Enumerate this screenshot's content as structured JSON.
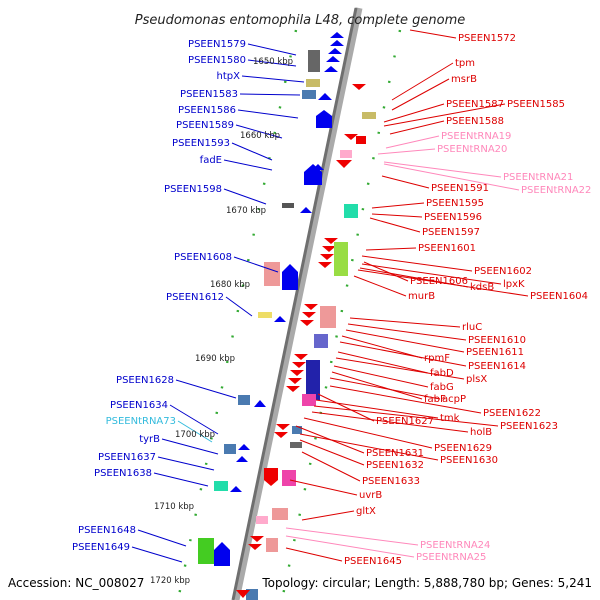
{
  "title": "Pseudomonas entomophila L48, complete genome",
  "footer": {
    "accession": "Accession: NC_008027",
    "summary": "Topology: circular; Length: 5,888,780 bp; Genes: 5,241"
  },
  "colors": {
    "left_label": "#0000cc",
    "left_rna_label": "#33bbdd",
    "right_label": "#dd0000",
    "right_rna_label": "#ff88bb",
    "axis": "#888888",
    "tick": "#33aa33"
  },
  "kbp_marks": [
    "1650 kbp",
    "1660 kbp",
    "1670 kbp",
    "1680 kbp",
    "1690 kbp",
    "1700 kbp",
    "1710 kbp",
    "1720 kbp"
  ],
  "left_labels": [
    {
      "text": "PSEEN1579",
      "type": "gene"
    },
    {
      "text": "PSEEN1580",
      "type": "gene"
    },
    {
      "text": "htpX",
      "type": "gene"
    },
    {
      "text": "PSEEN1583",
      "type": "gene"
    },
    {
      "text": "PSEEN1586",
      "type": "gene"
    },
    {
      "text": "PSEEN1589",
      "type": "gene"
    },
    {
      "text": "PSEEN1593",
      "type": "gene"
    },
    {
      "text": "fadE",
      "type": "gene"
    },
    {
      "text": "PSEEN1598",
      "type": "gene"
    },
    {
      "text": "PSEEN1608",
      "type": "gene"
    },
    {
      "text": "PSEEN1612",
      "type": "gene"
    },
    {
      "text": "PSEEN1628",
      "type": "gene"
    },
    {
      "text": "PSEEN1634",
      "type": "gene"
    },
    {
      "text": "PSEENtRNA73",
      "type": "rna"
    },
    {
      "text": "tyrB",
      "type": "gene"
    },
    {
      "text": "PSEEN1637",
      "type": "gene"
    },
    {
      "text": "PSEEN1638",
      "type": "gene"
    },
    {
      "text": "PSEEN1648",
      "type": "gene"
    },
    {
      "text": "PSEEN1649",
      "type": "gene"
    }
  ],
  "right_labels": [
    {
      "text": "PSEEN1572",
      "type": "gene"
    },
    {
      "text": "tpm",
      "type": "gene"
    },
    {
      "text": "msrB",
      "type": "gene"
    },
    {
      "text": "PSEEN1587",
      "type": "gene"
    },
    {
      "text": "PSEEN1585",
      "type": "gene"
    },
    {
      "text": "PSEEN1588",
      "type": "gene"
    },
    {
      "text": "PSEENtRNA19",
      "type": "rna"
    },
    {
      "text": "PSEENtRNA20",
      "type": "rna"
    },
    {
      "text": "PSEENtRNA21",
      "type": "rna"
    },
    {
      "text": "PSEENtRNA22",
      "type": "rna"
    },
    {
      "text": "PSEEN1591",
      "type": "gene"
    },
    {
      "text": "PSEEN1595",
      "type": "gene"
    },
    {
      "text": "PSEEN1596",
      "type": "gene"
    },
    {
      "text": "PSEEN1597",
      "type": "gene"
    },
    {
      "text": "PSEEN1601",
      "type": "gene"
    },
    {
      "text": "PSEEN1602",
      "type": "gene"
    },
    {
      "text": "PSEEN1606",
      "type": "gene"
    },
    {
      "text": "kdsB",
      "type": "gene"
    },
    {
      "text": "lpxK",
      "type": "gene"
    },
    {
      "text": "PSEEN1604",
      "type": "gene"
    },
    {
      "text": "murB",
      "type": "gene"
    },
    {
      "text": "rluC",
      "type": "gene"
    },
    {
      "text": "PSEEN1610",
      "type": "gene"
    },
    {
      "text": "PSEEN1611",
      "type": "gene"
    },
    {
      "text": "rpmF",
      "type": "gene"
    },
    {
      "text": "PSEEN1614",
      "type": "gene"
    },
    {
      "text": "fabD",
      "type": "gene"
    },
    {
      "text": "plsX",
      "type": "gene"
    },
    {
      "text": "fabG",
      "type": "gene"
    },
    {
      "text": "fabF",
      "type": "gene"
    },
    {
      "text": "acpP",
      "type": "gene"
    },
    {
      "text": "PSEEN1622",
      "type": "gene"
    },
    {
      "text": "PSEEN1627",
      "type": "gene"
    },
    {
      "text": "tmk",
      "type": "gene"
    },
    {
      "text": "PSEEN1623",
      "type": "gene"
    },
    {
      "text": "holB",
      "type": "gene"
    },
    {
      "text": "PSEEN1629",
      "type": "gene"
    },
    {
      "text": "PSEEN1631",
      "type": "gene"
    },
    {
      "text": "PSEEN1630",
      "type": "gene"
    },
    {
      "text": "PSEEN1632",
      "type": "gene"
    },
    {
      "text": "PSEEN1633",
      "type": "gene"
    },
    {
      "text": "uvrB",
      "type": "gene"
    },
    {
      "text": "gltX",
      "type": "gene"
    },
    {
      "text": "PSEENtRNA24",
      "type": "rna"
    },
    {
      "text": "PSEENtRNA25",
      "type": "rna"
    },
    {
      "text": "PSEEN1645",
      "type": "gene"
    }
  ]
}
